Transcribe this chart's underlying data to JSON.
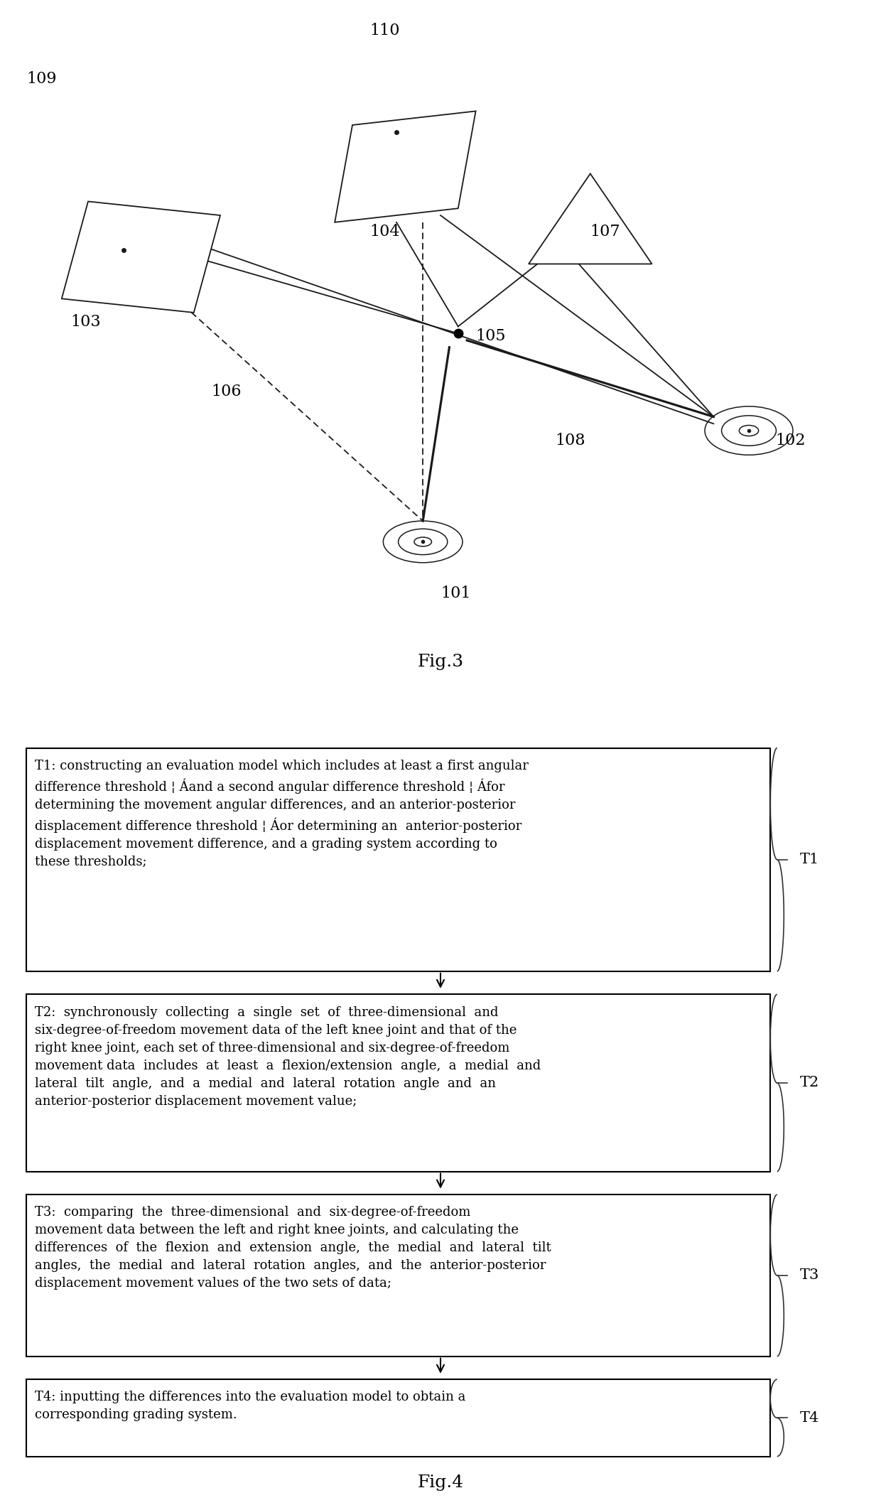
{
  "fig3_label": "Fig.3",
  "fig4_label": "Fig.4",
  "background_color": "#ffffff",
  "box_edge_color": "#000000",
  "text_color": "#000000",
  "t1_text": "T1: constructing an evaluation model which includes at least a first angular\ndifference threshold ¦ Áand a second angular difference threshold ¦ Áfor\ndetermining the movement angular differences, and an anterior-posterior\ndisplacement difference threshold ¦ Áor determining an  anterior-posterior\ndisplacement movement difference, and a grading system according to\nthese thresholds;",
  "t2_text": "T2:  synchronously  collecting  a  single  set  of  three-dimensional  and\nsix-degree-of-freedom movement data of the left knee joint and that of the\nright knee joint, each set of three-dimensional and six-degree-of-freedom\nmovement data  includes  at  least  a  flexion/extension  angle,  a  medial  and\nlateral  tilt  angle,  and  a  medial  and  lateral  rotation  angle  and  an\nanterior-posterior displacement movement value;",
  "t3_text": "T3:  comparing  the  three-dimensional  and  six-degree-of-freedom\nmovement data between the left and right knee joints, and calculating the\ndifferences  of  the  flexion  and  extension  angle,  the  medial  and  lateral  tilt\nangles,  the  medial  and  lateral  rotation  angles,  and  the  anterior-posterior\ndisplacement movement values of the two sets of data;",
  "t4_text": "T4: inputting the differences into the evaluation model to obtain a\ncorresponding grading system.",
  "label_t1": "T1",
  "label_t2": "T2",
  "label_t3": "T3",
  "label_t4": "T4",
  "numbers": [
    "101",
    "102",
    "103",
    "104",
    "105",
    "106",
    "107",
    "108",
    "109",
    "110"
  ],
  "font_size_label": 16,
  "font_size_box_text": 13,
  "font_size_fig_label": 18
}
